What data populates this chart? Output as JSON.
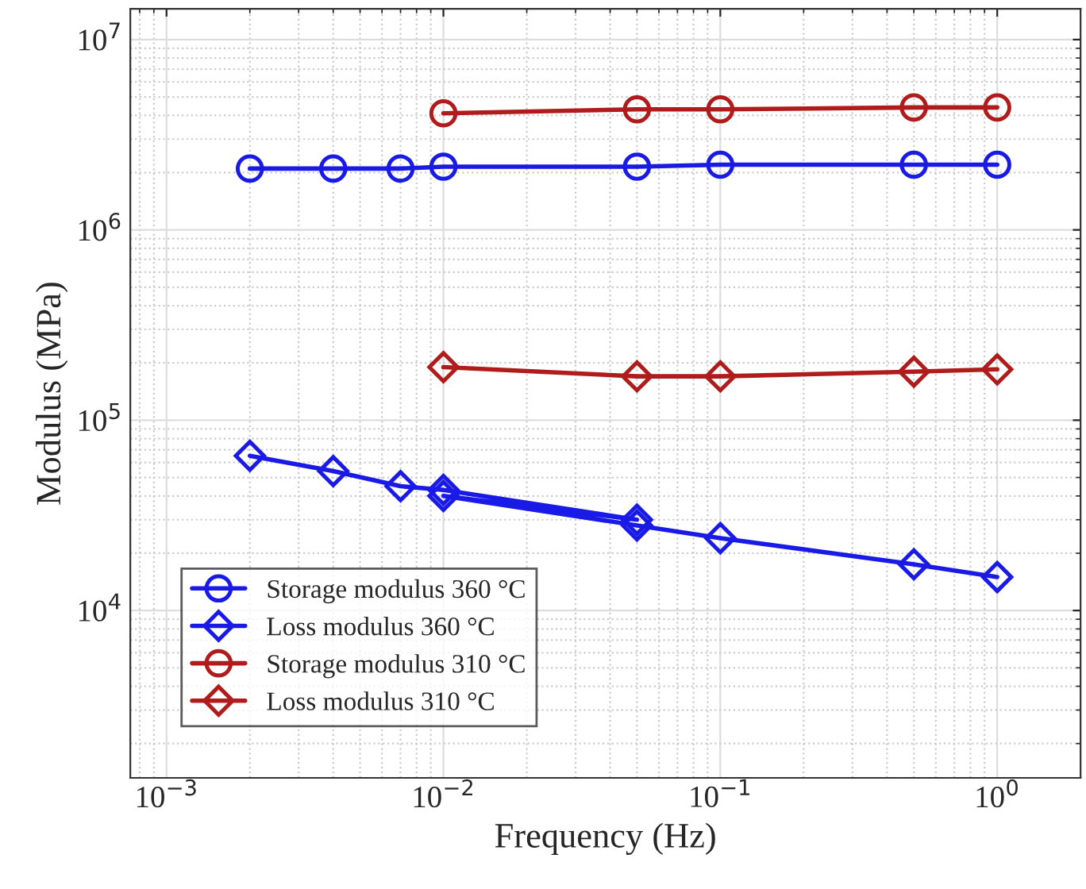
{
  "chart_data": {
    "type": "line",
    "xlabel": "Frequency (Hz)",
    "ylabel": "Modulus (MPa)",
    "log": "xy",
    "grid": true,
    "legend": "bottom left",
    "xlim": [
      0.00074,
      2
    ],
    "ylim": [
      1320,
      14500000
    ],
    "xticks": [
      {
        "value": 0.001,
        "label": "10$^{−3}$"
      },
      {
        "value": 0.01,
        "label": "10$^{−2}$"
      },
      {
        "value": 0.1,
        "label": "10$^{−1}$"
      },
      {
        "value": 1,
        "label": "10$^{0}$"
      }
    ],
    "yticks": [
      {
        "value": 10000,
        "label": "10$^{4}$"
      },
      {
        "value": 100000,
        "label": "10$^{5}$"
      },
      {
        "value": 1000000,
        "label": "10$^{6}$"
      },
      {
        "value": 10000000,
        "label": "10$^{7}$"
      }
    ],
    "series": [
      {
        "name": "Storage modulus 360 °C",
        "color": "#1a1ae6",
        "marker": "circle",
        "x": [
          0.002,
          0.004,
          0.007,
          0.01,
          0.05,
          0.1,
          0.5,
          1
        ],
        "values": [
          2100000,
          2100000,
          2100000,
          2150000,
          2150000,
          2200000,
          2200000,
          2200000
        ]
      },
      {
        "name": "Loss modulus 360 °C",
        "color": "#1a1ae6",
        "marker": "diamond",
        "x": [
          0.002,
          0.004,
          0.007,
          0.01,
          0.05,
          0.01,
          0.05,
          0.1,
          0.5,
          1
        ],
        "values": [
          65000,
          54000,
          45000,
          43000,
          30000,
          40000,
          28000,
          24000,
          17500,
          15000
        ]
      },
      {
        "name": "Storage modulus 310 °C",
        "color": "#b01c1c",
        "marker": "circle",
        "x": [
          0.01,
          0.05,
          0.1,
          0.5,
          1
        ],
        "values": [
          4100000,
          4300000,
          4300000,
          4400000,
          4400000
        ]
      },
      {
        "name": "Loss modulus 310 °C",
        "color": "#b01c1c",
        "marker": "diamond",
        "x": [
          0.01,
          0.05,
          0.1,
          0.5,
          1
        ],
        "values": [
          190000,
          170000,
          170000,
          180000,
          185000
        ]
      }
    ]
  }
}
